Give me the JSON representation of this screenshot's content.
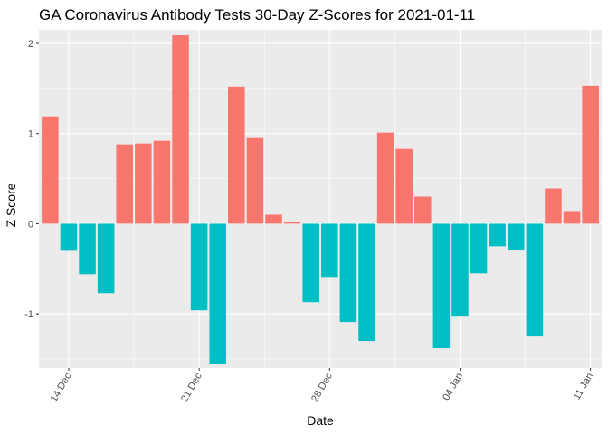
{
  "chart_data": {
    "type": "bar",
    "title": "GA Coronavirus Antibody Tests 30-Day Z-Scores for 2021-01-11",
    "xlabel": "Date",
    "ylabel": "Z Score",
    "x": [
      "2020-12-13",
      "2020-12-14",
      "2020-12-15",
      "2020-12-16",
      "2020-12-17",
      "2020-12-18",
      "2020-12-19",
      "2020-12-20",
      "2020-12-21",
      "2020-12-22",
      "2020-12-23",
      "2020-12-24",
      "2020-12-25",
      "2020-12-26",
      "2020-12-27",
      "2020-12-28",
      "2020-12-29",
      "2020-12-30",
      "2020-12-31",
      "2021-01-01",
      "2021-01-02",
      "2021-01-03",
      "2021-01-04",
      "2021-01-05",
      "2021-01-06",
      "2021-01-07",
      "2021-01-08",
      "2021-01-09",
      "2021-01-10",
      "2021-01-11"
    ],
    "values": [
      1.19,
      -0.3,
      -0.56,
      -0.77,
      0.88,
      0.89,
      0.92,
      2.09,
      -0.96,
      -1.56,
      1.52,
      0.95,
      0.1,
      0.02,
      -0.87,
      -0.59,
      -1.09,
      -1.3,
      1.01,
      0.83,
      0.3,
      -1.38,
      -1.03,
      -0.55,
      -0.25,
      -0.29,
      -1.25,
      0.39,
      0.14,
      1.53
    ],
    "x_ticks": [
      {
        "date": "2020-12-14",
        "label": "14 Dec"
      },
      {
        "date": "2020-12-21",
        "label": "21 Dec"
      },
      {
        "date": "2020-12-28",
        "label": "28 Dec"
      },
      {
        "date": "2021-01-04",
        "label": "04 Jan"
      },
      {
        "date": "2021-01-11",
        "label": "11 Jan"
      }
    ],
    "y_ticks": [
      -1,
      0,
      1,
      2
    ],
    "ylim": [
      -1.6,
      2.15
    ],
    "colors": {
      "positive": "#F8766D",
      "negative": "#00BFC4",
      "panel": "#EBEBEB",
      "grid": "#ffffff"
    },
    "grid": true,
    "legend": "none"
  }
}
